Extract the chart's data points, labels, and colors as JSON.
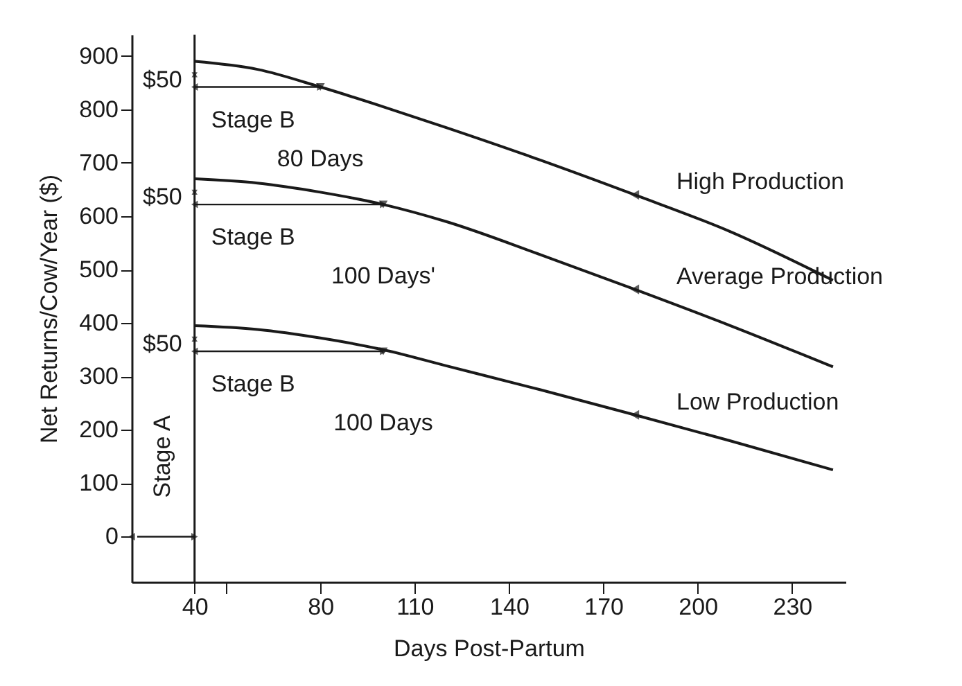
{
  "chart_data": {
    "type": "line",
    "xlabel": "Days Post-Partum",
    "ylabel": "Net Returns/Cow/Year  ($)",
    "x": [
      40,
      60,
      80,
      100,
      120,
      150,
      180,
      210,
      243
    ],
    "series": [
      {
        "name": "High Production",
        "color": "#1a1a1a",
        "values": [
          890,
          875,
          842,
          805,
          766,
          705,
          640,
          572,
          480
        ]
      },
      {
        "name": "Average Production",
        "color": "#1a1a1a",
        "values": [
          670,
          662,
          645,
          622,
          590,
          528,
          463,
          396,
          318
        ]
      },
      {
        "name": "Low Production",
        "color": "#1a1a1a",
        "values": [
          395,
          388,
          372,
          350,
          320,
          275,
          228,
          180,
          125
        ]
      }
    ],
    "xlim": [
      20,
      247
    ],
    "xticks": [
      40,
      {
        "value": 50,
        "label": null
      },
      80,
      110,
      140,
      170,
      200,
      230
    ],
    "ylim": [
      -85,
      940
    ],
    "yticks": [
      0,
      100,
      200,
      300,
      400,
      500,
      600,
      700,
      800,
      900
    ],
    "ref_lines": [
      {
        "axis": "x",
        "value": 40,
        "label": null
      }
    ],
    "annotations": [
      {
        "text": "$50",
        "x": 40,
        "y": 865
      },
      {
        "text": "Stage B",
        "x": 40,
        "y": 842
      },
      {
        "text": "80 Days",
        "x": 80,
        "y": 842
      },
      {
        "text": "$50",
        "x": 40,
        "y": 645
      },
      {
        "text": "Stage B",
        "x": 40,
        "y": 622
      },
      {
        "text": "100 Days'",
        "x": 100,
        "y": 622
      },
      {
        "text": "$50",
        "x": 40,
        "y": 370
      },
      {
        "text": "Stage B",
        "x": 40,
        "y": 347
      },
      {
        "text": "100 Days",
        "x": 100,
        "y": 347
      },
      "Stage A"
    ],
    "grid": false,
    "legend": false,
    "marker": "none",
    "line_style": "solid"
  }
}
